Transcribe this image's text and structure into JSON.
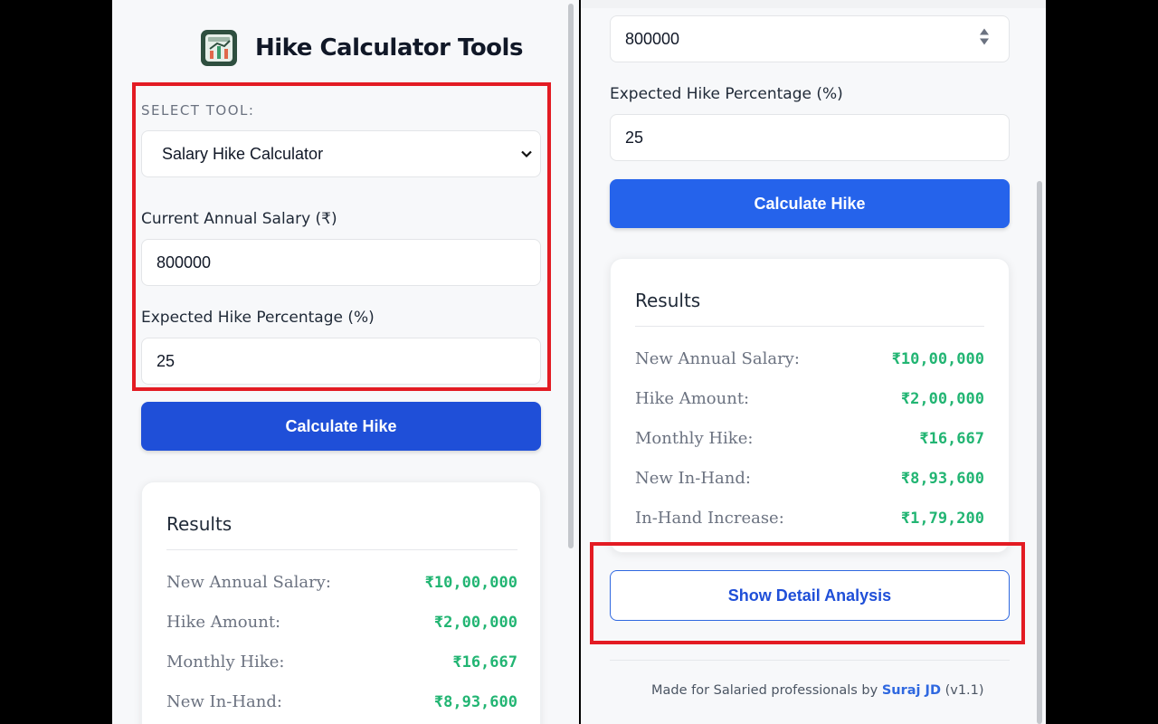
{
  "app": {
    "title": "Hike Calculator Tools"
  },
  "tool_select": {
    "label": "SELECT TOOL:",
    "value": "Salary Hike Calculator"
  },
  "salary_field": {
    "label": "Current Annual Salary (₹)",
    "value": "800000"
  },
  "hike_field": {
    "label": "Expected Hike Percentage (%)",
    "value": "25"
  },
  "calculate_button": "Calculate Hike",
  "results": {
    "title": "Results",
    "rows": [
      {
        "label": "New Annual Salary:",
        "value": "₹10,00,000"
      },
      {
        "label": "Hike Amount:",
        "value": "₹2,00,000"
      },
      {
        "label": "Monthly Hike:",
        "value": "₹16,667"
      },
      {
        "label": "New In-Hand:",
        "value": "₹8,93,600"
      },
      {
        "label": "In-Hand Increase:",
        "value": "₹1,79,200"
      }
    ]
  },
  "detail_button": "Show Detail Analysis",
  "footer": {
    "prefix": "Made for Salaried professionals by",
    "author": "Suraj JD",
    "version": "(v1.1)"
  },
  "colors": {
    "primary": "#1f4fd8",
    "primary_light": "#2563eb",
    "result_value": "#22b573",
    "highlight": "#e31b23"
  }
}
